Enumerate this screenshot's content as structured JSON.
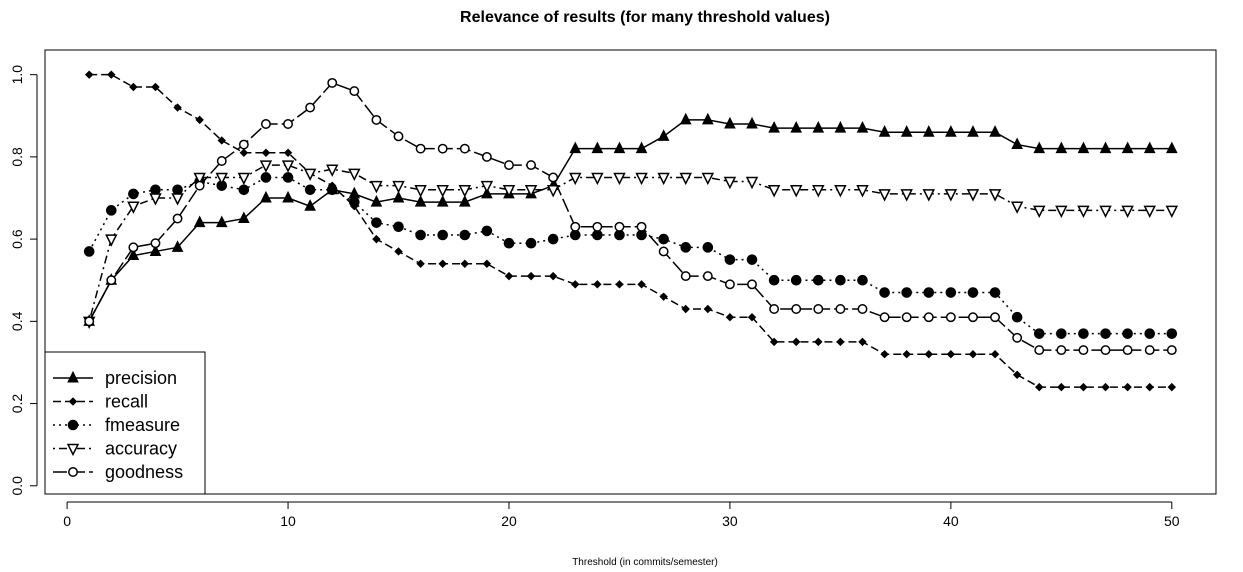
{
  "chart_data": {
    "type": "line",
    "title": "Relevance of results (for many threshold values)",
    "xlabel": "Threshold (in commits/semester)",
    "ylabel": "",
    "xlim": [
      -1,
      52
    ],
    "ylim": [
      -0.02,
      1.06
    ],
    "x_ticks": [
      0,
      10,
      20,
      30,
      40,
      50
    ],
    "y_ticks": [
      0.0,
      0.2,
      0.4,
      0.6,
      0.8,
      1.0
    ],
    "x_tick_labels": [
      "0",
      "10",
      "20",
      "30",
      "40",
      "50"
    ],
    "y_tick_labels": [
      "0.0",
      "0.2",
      "0.4",
      "0.6",
      "0.8",
      "1.0"
    ],
    "grid": false,
    "legend_position": "bottom-left",
    "x": [
      1,
      2,
      3,
      4,
      5,
      6,
      7,
      8,
      9,
      10,
      11,
      12,
      13,
      14,
      15,
      16,
      17,
      18,
      19,
      20,
      21,
      22,
      23,
      24,
      25,
      26,
      27,
      28,
      29,
      30,
      31,
      32,
      33,
      34,
      35,
      36,
      37,
      38,
      39,
      40,
      41,
      42,
      43,
      44,
      45,
      46,
      47,
      48,
      49,
      50
    ],
    "series": [
      {
        "name": "precision",
        "marker": "triangle-up",
        "dash": "",
        "values": [
          0.4,
          0.5,
          0.56,
          0.57,
          0.58,
          0.64,
          0.64,
          0.65,
          0.7,
          0.7,
          0.68,
          0.72,
          0.71,
          0.69,
          0.7,
          0.69,
          0.69,
          0.69,
          0.71,
          0.71,
          0.71,
          0.73,
          0.82,
          0.82,
          0.82,
          0.82,
          0.85,
          0.89,
          0.89,
          0.88,
          0.88,
          0.87,
          0.87,
          0.87,
          0.87,
          0.87,
          0.86,
          0.86,
          0.86,
          0.86,
          0.86,
          0.86,
          0.83,
          0.82,
          0.82,
          0.82,
          0.82,
          0.82,
          0.82,
          0.82
        ]
      },
      {
        "name": "recall",
        "marker": "diamond",
        "dash": "8,4",
        "values": [
          1.0,
          1.0,
          0.97,
          0.97,
          0.92,
          0.89,
          0.84,
          0.81,
          0.81,
          0.81,
          0.76,
          0.73,
          0.68,
          0.6,
          0.57,
          0.54,
          0.54,
          0.54,
          0.54,
          0.51,
          0.51,
          0.51,
          0.49,
          0.49,
          0.49,
          0.49,
          0.46,
          0.43,
          0.43,
          0.41,
          0.41,
          0.35,
          0.35,
          0.35,
          0.35,
          0.35,
          0.32,
          0.32,
          0.32,
          0.32,
          0.32,
          0.32,
          0.27,
          0.24,
          0.24,
          0.24,
          0.24,
          0.24,
          0.24,
          0.24
        ]
      },
      {
        "name": "fmeasure",
        "marker": "circle-filled",
        "dash": "2,4",
        "values": [
          0.57,
          0.67,
          0.71,
          0.72,
          0.72,
          0.74,
          0.73,
          0.72,
          0.75,
          0.75,
          0.72,
          0.72,
          0.69,
          0.64,
          0.63,
          0.61,
          0.61,
          0.61,
          0.62,
          0.59,
          0.59,
          0.6,
          0.61,
          0.61,
          0.61,
          0.61,
          0.6,
          0.58,
          0.58,
          0.55,
          0.55,
          0.5,
          0.5,
          0.5,
          0.5,
          0.5,
          0.47,
          0.47,
          0.47,
          0.47,
          0.47,
          0.47,
          0.41,
          0.37,
          0.37,
          0.37,
          0.37,
          0.37,
          0.37,
          0.37
        ]
      },
      {
        "name": "accuracy",
        "marker": "triangle-down",
        "dash": "2,4,8,4",
        "values": [
          0.4,
          0.6,
          0.68,
          0.7,
          0.7,
          0.75,
          0.75,
          0.75,
          0.78,
          0.78,
          0.76,
          0.77,
          0.76,
          0.73,
          0.73,
          0.72,
          0.72,
          0.72,
          0.73,
          0.72,
          0.72,
          0.72,
          0.75,
          0.75,
          0.75,
          0.75,
          0.75,
          0.75,
          0.75,
          0.74,
          0.74,
          0.72,
          0.72,
          0.72,
          0.72,
          0.72,
          0.71,
          0.71,
          0.71,
          0.71,
          0.71,
          0.71,
          0.68,
          0.67,
          0.67,
          0.67,
          0.67,
          0.67,
          0.67,
          0.67
        ]
      },
      {
        "name": "goodness",
        "marker": "circle-open",
        "dash": "14,4",
        "values": [
          0.4,
          0.5,
          0.58,
          0.59,
          0.65,
          0.73,
          0.79,
          0.83,
          0.88,
          0.88,
          0.92,
          0.98,
          0.96,
          0.89,
          0.85,
          0.82,
          0.82,
          0.82,
          0.8,
          0.78,
          0.78,
          0.75,
          0.63,
          0.63,
          0.63,
          0.63,
          0.57,
          0.51,
          0.51,
          0.49,
          0.49,
          0.43,
          0.43,
          0.43,
          0.43,
          0.43,
          0.41,
          0.41,
          0.41,
          0.41,
          0.41,
          0.41,
          0.36,
          0.33,
          0.33,
          0.33,
          0.33,
          0.33,
          0.33,
          0.33
        ]
      }
    ]
  }
}
